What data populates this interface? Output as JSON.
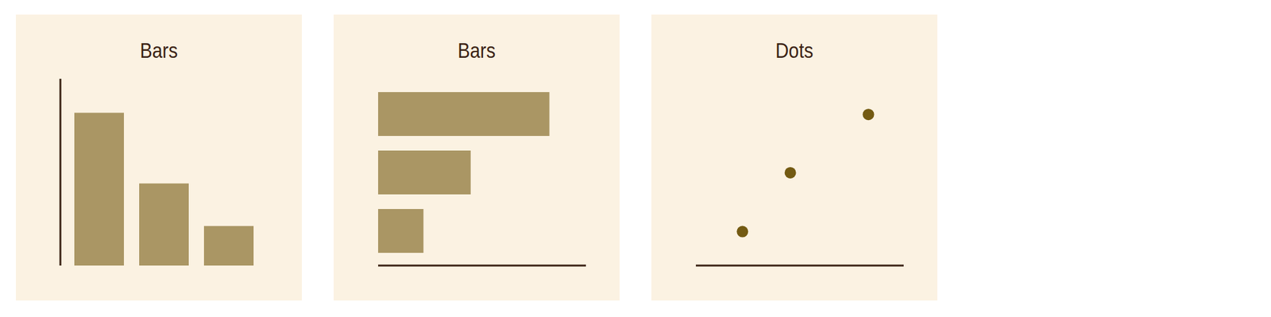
{
  "chart_data": [
    {
      "type": "bar",
      "title": "Bars",
      "categories": [
        null,
        null,
        null
      ],
      "values": [
        2.7,
        1.45,
        0.7
      ],
      "color": "#aa9664",
      "ylim": [
        0,
        3.3
      ],
      "yticks": [
        0,
        1,
        2,
        3
      ],
      "tick_labels": false
    },
    {
      "type": "bar",
      "orientation": "horizontal",
      "title": "Bars",
      "categories": [
        null,
        null,
        null
      ],
      "values": [
        2.72,
        1.47,
        0.72
      ],
      "color": "#aa9664",
      "xlim": [
        0,
        3.3
      ],
      "xticks": [
        0,
        1,
        2,
        3
      ],
      "tick_labels": false
    },
    {
      "type": "scatter",
      "title": "Dots",
      "x": [
        0.74,
        1.5,
        2.74
      ],
      "values": [
        0.6,
        1.64,
        2.67
      ],
      "color": "#735a12",
      "xlim": [
        0,
        3.3
      ],
      "xticks": [
        0,
        1,
        2,
        3
      ],
      "ylim": [
        0,
        3.3
      ],
      "tick_labels": false
    }
  ]
}
